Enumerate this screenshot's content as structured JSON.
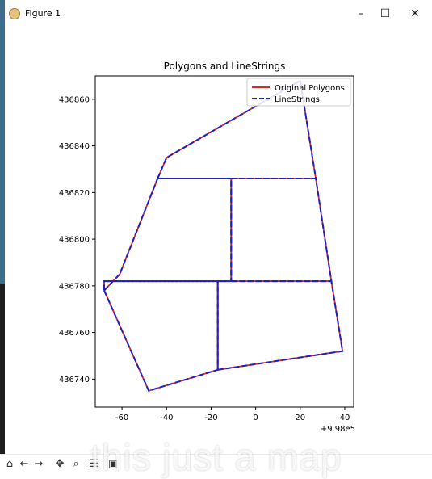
{
  "window": {
    "title": "Figure 1",
    "controls": {
      "minimize": "–",
      "maximize": "☐",
      "close": "✕"
    }
  },
  "toolbar": {
    "icons": [
      "home-icon",
      "back-icon",
      "forward-icon",
      "pan-icon",
      "zoom-icon",
      "configure-icon",
      "save-icon"
    ]
  },
  "overlay_caption": "this just a map",
  "chart_data": {
    "type": "line",
    "title": "Polygons and LineStrings",
    "x_offset_label": "+9.98e5",
    "xlim": [
      -72,
      44
    ],
    "ylim": [
      436728,
      436870
    ],
    "x_ticks": [
      "-60",
      "-40",
      "-20",
      "0",
      "20",
      "40"
    ],
    "y_ticks": [
      "436740",
      "436760",
      "436780",
      "436800",
      "436820",
      "436840",
      "436860"
    ],
    "legend": {
      "placement": "top-right",
      "entries": [
        {
          "label": "Original Polygons",
          "color": "#d62728",
          "style": "solid"
        },
        {
          "label": "LineStrings",
          "color": "#1f1fbf",
          "style": "dashed"
        }
      ]
    },
    "series": [
      {
        "name": "Original Polygons",
        "color": "#d62728",
        "style": "solid",
        "paths": [
          [
            [
              -68,
              436778
            ],
            [
              -48,
              436735
            ],
            [
              -17,
              436744
            ],
            [
              -17,
              436782
            ],
            [
              -68,
              436782
            ],
            [
              -68,
              436778
            ]
          ],
          [
            [
              -17,
              436744
            ],
            [
              39,
              436752
            ],
            [
              34,
              436782
            ],
            [
              -17,
              436782
            ],
            [
              -17,
              436744
            ]
          ],
          [
            [
              -68,
              436778
            ],
            [
              -61,
              436785
            ],
            [
              -44,
              436826
            ],
            [
              -11,
              436826
            ],
            [
              -11,
              436782
            ],
            [
              -68,
              436782
            ]
          ],
          [
            [
              -11,
              436782
            ],
            [
              34,
              436782
            ],
            [
              27,
              436826
            ],
            [
              -11,
              436826
            ],
            [
              -11,
              436782
            ]
          ],
          [
            [
              -44,
              436826
            ],
            [
              -40,
              436835
            ],
            [
              20,
              436868
            ],
            [
              27,
              436826
            ],
            [
              -44,
              436826
            ]
          ]
        ]
      },
      {
        "name": "LineStrings",
        "color": "#1f1fbf",
        "style": "dashed",
        "paths": [
          [
            [
              -68,
              436778
            ],
            [
              -48,
              436735
            ],
            [
              -17,
              436744
            ],
            [
              -17,
              436782
            ],
            [
              -68,
              436782
            ],
            [
              -68,
              436778
            ]
          ],
          [
            [
              -17,
              436744
            ],
            [
              39,
              436752
            ],
            [
              34,
              436782
            ],
            [
              -17,
              436782
            ],
            [
              -17,
              436744
            ]
          ],
          [
            [
              -68,
              436778
            ],
            [
              -61,
              436785
            ],
            [
              -44,
              436826
            ],
            [
              -11,
              436826
            ],
            [
              -11,
              436782
            ],
            [
              -68,
              436782
            ]
          ],
          [
            [
              -11,
              436782
            ],
            [
              34,
              436782
            ],
            [
              27,
              436826
            ],
            [
              -11,
              436826
            ],
            [
              -11,
              436782
            ]
          ],
          [
            [
              -44,
              436826
            ],
            [
              -40,
              436835
            ],
            [
              20,
              436868
            ],
            [
              27,
              436826
            ],
            [
              -44,
              436826
            ]
          ]
        ]
      }
    ]
  }
}
